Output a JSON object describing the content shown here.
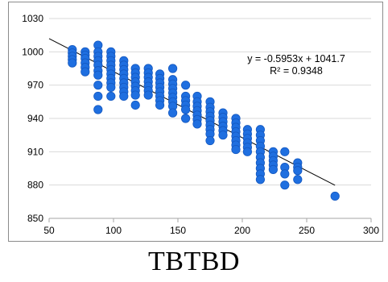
{
  "caption": "TBTBD",
  "chart_data": {
    "type": "scatter",
    "title": "",
    "xlabel": "",
    "ylabel": "",
    "xlim": [
      50,
      300
    ],
    "ylim": [
      850,
      1030
    ],
    "x_ticks": [
      50,
      100,
      150,
      200,
      250,
      300
    ],
    "y_ticks": [
      850,
      880,
      910,
      940,
      970,
      1000,
      1030
    ],
    "grid": "horizontal",
    "legend": "none",
    "marker_color": "#1f6fe0",
    "marker_edge_color": "#1458c0",
    "trendline_color": "#000000",
    "equation_label": "y = -0.5953x + 1041.7",
    "r2_label": "R² = 0.9348",
    "trendline": {
      "slope": -0.5953,
      "intercept": 1041.7,
      "x_start": 50,
      "x_end": 272
    },
    "series": [
      {
        "points": [
          [
            68,
            1002
          ],
          [
            68,
            999
          ],
          [
            68,
            996
          ],
          [
            68,
            993
          ],
          [
            68,
            990
          ],
          [
            78,
            1000
          ],
          [
            78,
            997
          ],
          [
            78,
            994
          ],
          [
            78,
            990
          ],
          [
            78,
            986
          ],
          [
            78,
            982
          ],
          [
            88,
            1006
          ],
          [
            88,
            1000
          ],
          [
            88,
            996
          ],
          [
            88,
            992
          ],
          [
            88,
            988
          ],
          [
            88,
            983
          ],
          [
            88,
            979
          ],
          [
            88,
            970
          ],
          [
            88,
            960
          ],
          [
            88,
            948
          ],
          [
            98,
            1000
          ],
          [
            98,
            996
          ],
          [
            98,
            992
          ],
          [
            98,
            988
          ],
          [
            98,
            984
          ],
          [
            98,
            980
          ],
          [
            98,
            976
          ],
          [
            98,
            972
          ],
          [
            98,
            968
          ],
          [
            98,
            960
          ],
          [
            108,
            992
          ],
          [
            108,
            988
          ],
          [
            108,
            984
          ],
          [
            108,
            980
          ],
          [
            108,
            976
          ],
          [
            108,
            972
          ],
          [
            108,
            968
          ],
          [
            108,
            964
          ],
          [
            108,
            960
          ],
          [
            117,
            985
          ],
          [
            117,
            981
          ],
          [
            117,
            977
          ],
          [
            117,
            973
          ],
          [
            117,
            969
          ],
          [
            117,
            965
          ],
          [
            117,
            961
          ],
          [
            117,
            952
          ],
          [
            127,
            985
          ],
          [
            127,
            981
          ],
          [
            127,
            977
          ],
          [
            127,
            973
          ],
          [
            127,
            969
          ],
          [
            127,
            965
          ],
          [
            127,
            961
          ],
          [
            136,
            980
          ],
          [
            136,
            976
          ],
          [
            136,
            972
          ],
          [
            136,
            968
          ],
          [
            136,
            964
          ],
          [
            136,
            960
          ],
          [
            136,
            956
          ],
          [
            136,
            952
          ],
          [
            146,
            985
          ],
          [
            146,
            975
          ],
          [
            146,
            971
          ],
          [
            146,
            967
          ],
          [
            146,
            963
          ],
          [
            146,
            959
          ],
          [
            146,
            955
          ],
          [
            146,
            951
          ],
          [
            146,
            945
          ],
          [
            156,
            970
          ],
          [
            156,
            960
          ],
          [
            156,
            956
          ],
          [
            156,
            952
          ],
          [
            156,
            948
          ],
          [
            156,
            940
          ],
          [
            165,
            960
          ],
          [
            165,
            955
          ],
          [
            165,
            951
          ],
          [
            165,
            947
          ],
          [
            165,
            943
          ],
          [
            165,
            939
          ],
          [
            165,
            935
          ],
          [
            175,
            955
          ],
          [
            175,
            950
          ],
          [
            175,
            946
          ],
          [
            175,
            942
          ],
          [
            175,
            938
          ],
          [
            175,
            934
          ],
          [
            175,
            930
          ],
          [
            175,
            926
          ],
          [
            175,
            920
          ],
          [
            185,
            945
          ],
          [
            185,
            941
          ],
          [
            185,
            937
          ],
          [
            185,
            933
          ],
          [
            185,
            929
          ],
          [
            185,
            925
          ],
          [
            195,
            940
          ],
          [
            195,
            936
          ],
          [
            195,
            932
          ],
          [
            195,
            928
          ],
          [
            195,
            924
          ],
          [
            195,
            920
          ],
          [
            195,
            916
          ],
          [
            195,
            912
          ],
          [
            204,
            930
          ],
          [
            204,
            926
          ],
          [
            204,
            922
          ],
          [
            204,
            918
          ],
          [
            204,
            914
          ],
          [
            204,
            910
          ],
          [
            214,
            930
          ],
          [
            214,
            925
          ],
          [
            214,
            920
          ],
          [
            214,
            915
          ],
          [
            214,
            910
          ],
          [
            214,
            905
          ],
          [
            214,
            900
          ],
          [
            214,
            895
          ],
          [
            214,
            890
          ],
          [
            214,
            885
          ],
          [
            224,
            910
          ],
          [
            224,
            906
          ],
          [
            224,
            902
          ],
          [
            224,
            898
          ],
          [
            224,
            894
          ],
          [
            233,
            910
          ],
          [
            233,
            896
          ],
          [
            233,
            890
          ],
          [
            233,
            880
          ],
          [
            243,
            900
          ],
          [
            243,
            896
          ],
          [
            243,
            893
          ],
          [
            243,
            885
          ],
          [
            272,
            870
          ]
        ]
      }
    ]
  }
}
